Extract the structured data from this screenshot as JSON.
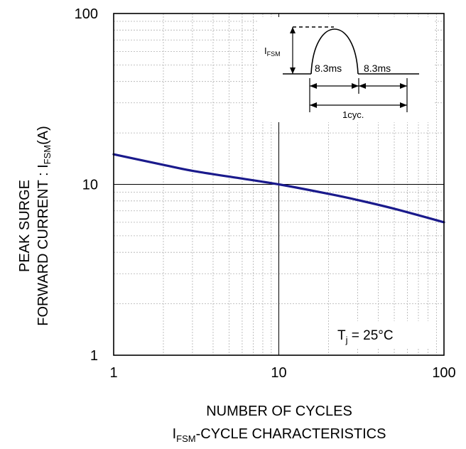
{
  "chart_data": {
    "type": "line",
    "x_scale": "log",
    "y_scale": "log",
    "xlim": [
      1,
      100
    ],
    "ylim": [
      1,
      100
    ],
    "grid": true,
    "x_ticks": [
      {
        "value": 1,
        "label": "1"
      },
      {
        "value": 10,
        "label": "10"
      },
      {
        "value": 100,
        "label": "100"
      }
    ],
    "y_ticks": [
      {
        "value": 1,
        "label": "1"
      },
      {
        "value": 10,
        "label": "10"
      },
      {
        "value": 100,
        "label": "100"
      }
    ],
    "ylabel": {
      "line1": "PEAK SURGE",
      "line2_main": "FORWARD CURRENT : I",
      "line2_sub": "FSM",
      "line2_tail": "(A)"
    },
    "xlabel": "NUMBER OF CYCLES",
    "caption": {
      "main": "I",
      "sub": "FSM",
      "tail": "-CYCLE CHARACTERISTICS"
    },
    "annotation": {
      "main": "T",
      "sub": "j",
      "tail": " = 25°C"
    },
    "inset": {
      "ifsm_main": "I",
      "ifsm_sub": "FSM",
      "half1": "8.3ms",
      "half2": "8.3ms",
      "period": "1cyc."
    },
    "series": [
      {
        "color": "#1a1a8c",
        "points": [
          {
            "x": 1,
            "y": 15
          },
          {
            "x": 2,
            "y": 13
          },
          {
            "x": 3,
            "y": 12
          },
          {
            "x": 5,
            "y": 11.1
          },
          {
            "x": 10,
            "y": 10
          },
          {
            "x": 20,
            "y": 8.8
          },
          {
            "x": 30,
            "y": 8.1
          },
          {
            "x": 50,
            "y": 7.2
          },
          {
            "x": 100,
            "y": 6
          }
        ]
      }
    ]
  }
}
